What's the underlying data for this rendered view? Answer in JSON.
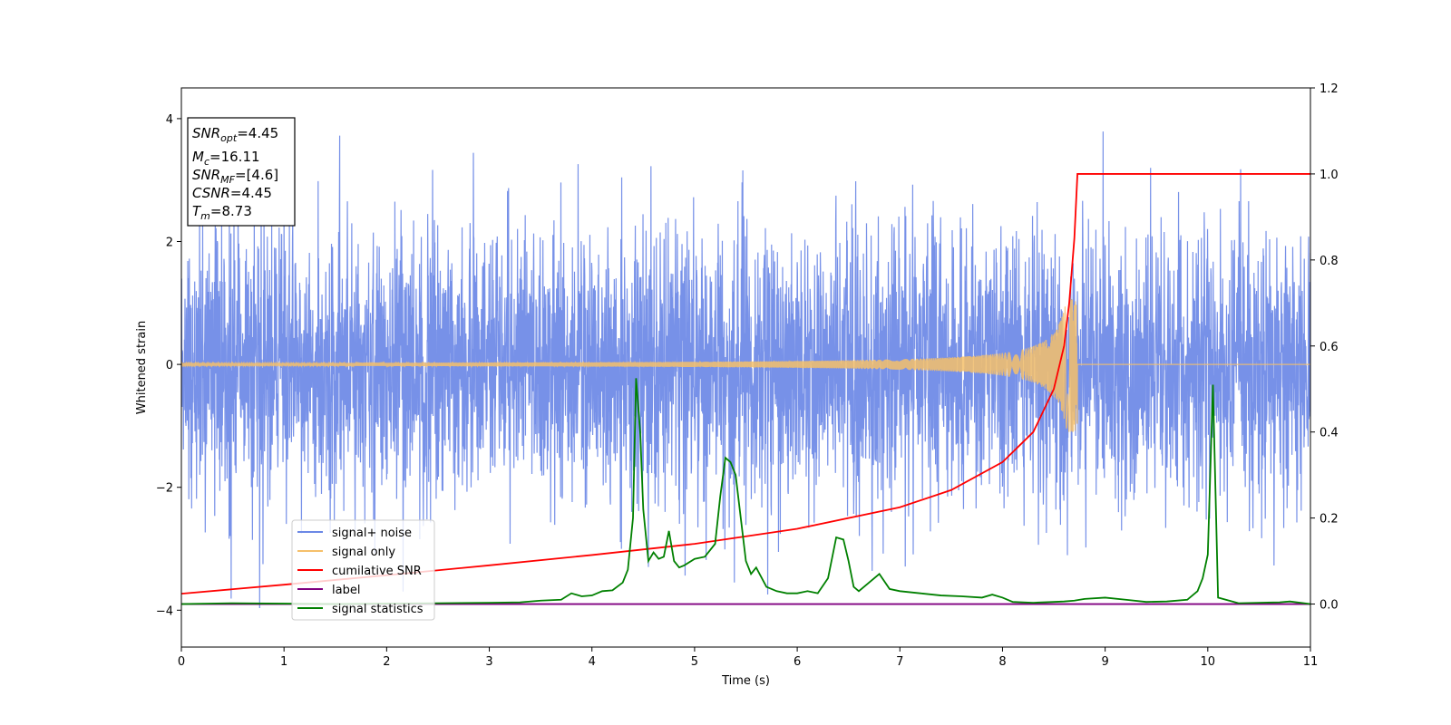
{
  "chart_data": {
    "type": "line",
    "title": "",
    "xlabel": "Time (s)",
    "ylabel": "Whitened strain",
    "xlim": [
      0,
      11
    ],
    "ylim_left": [
      -4.6,
      4.5
    ],
    "ylim_right": [
      -0.1,
      1.2
    ],
    "x_ticks": [
      0,
      1,
      2,
      3,
      4,
      5,
      6,
      7,
      8,
      9,
      10,
      11
    ],
    "y_ticks_left": [
      -4,
      -2,
      0,
      2,
      4
    ],
    "y_ticks_right": [
      0.0,
      0.2,
      0.4,
      0.6,
      0.8,
      1.0,
      1.2
    ],
    "y_ticks_right_labels": [
      "0.0",
      "0.2",
      "0.4",
      "0.6",
      "0.8",
      "1.0",
      "1.2"
    ],
    "grid": false,
    "legend_position": "lower-left",
    "series": [
      {
        "name": "signal+ noise",
        "axis": "left",
        "color": "#6b88e6",
        "kind": "noise",
        "std": 1.1,
        "range": [
          -4.1,
          4.1
        ],
        "sample_rate_hz": 400
      },
      {
        "name": "signal only",
        "axis": "left",
        "color": "#f5c06a",
        "kind": "chirp",
        "merger_time": 8.73,
        "peak_amplitude": 1.1,
        "start_amplitude": 0.02
      },
      {
        "name": "cumilative SNR",
        "axis": "right",
        "color": "#ff0000",
        "x": [
          0,
          1,
          2,
          3,
          4,
          5,
          6,
          7,
          7.5,
          8,
          8.3,
          8.5,
          8.6,
          8.65,
          8.7,
          8.73,
          11
        ],
        "y": [
          0.024,
          0.045,
          0.067,
          0.09,
          0.114,
          0.14,
          0.175,
          0.225,
          0.265,
          0.33,
          0.4,
          0.5,
          0.6,
          0.7,
          0.85,
          1.0,
          1.0
        ]
      },
      {
        "name": "label",
        "axis": "right",
        "color": "#800080",
        "x": [
          0,
          11
        ],
        "y": [
          0.0,
          0.0
        ]
      },
      {
        "name": "signal statistics",
        "axis": "right",
        "color": "#008000",
        "x": [
          0,
          0.5,
          1,
          1.5,
          2,
          2.5,
          3,
          3.3,
          3.5,
          3.7,
          3.8,
          3.9,
          4.0,
          4.1,
          4.2,
          4.3,
          4.35,
          4.4,
          4.43,
          4.47,
          4.5,
          4.55,
          4.6,
          4.65,
          4.7,
          4.75,
          4.8,
          4.85,
          4.9,
          5.0,
          5.1,
          5.2,
          5.25,
          5.3,
          5.35,
          5.4,
          5.45,
          5.5,
          5.55,
          5.6,
          5.7,
          5.8,
          5.9,
          6.0,
          6.1,
          6.2,
          6.3,
          6.38,
          6.45,
          6.5,
          6.55,
          6.6,
          6.7,
          6.8,
          6.9,
          7.0,
          7.2,
          7.4,
          7.6,
          7.8,
          7.9,
          8.0,
          8.1,
          8.3,
          8.5,
          8.6,
          8.7,
          8.8,
          9.0,
          9.2,
          9.4,
          9.6,
          9.8,
          9.9,
          9.95,
          10.0,
          10.05,
          10.1,
          10.3,
          10.5,
          10.7,
          10.8,
          11.0
        ],
        "y": [
          0.0,
          0.002,
          0.001,
          0.0,
          0.001,
          0.002,
          0.003,
          0.004,
          0.008,
          0.01,
          0.025,
          0.018,
          0.02,
          0.03,
          0.032,
          0.05,
          0.08,
          0.2,
          0.525,
          0.4,
          0.22,
          0.1,
          0.12,
          0.105,
          0.11,
          0.17,
          0.1,
          0.085,
          0.09,
          0.105,
          0.11,
          0.14,
          0.25,
          0.34,
          0.33,
          0.3,
          0.2,
          0.1,
          0.07,
          0.085,
          0.04,
          0.03,
          0.025,
          0.025,
          0.03,
          0.025,
          0.06,
          0.155,
          0.15,
          0.1,
          0.04,
          0.03,
          0.05,
          0.07,
          0.035,
          0.03,
          0.025,
          0.02,
          0.018,
          0.015,
          0.022,
          0.015,
          0.005,
          0.003,
          0.005,
          0.006,
          0.008,
          0.012,
          0.015,
          0.01,
          0.005,
          0.006,
          0.01,
          0.03,
          0.06,
          0.115,
          0.51,
          0.015,
          0.002,
          0.003,
          0.004,
          0.006,
          0.0
        ]
      }
    ],
    "annotation_box": {
      "lines": [
        {
          "var": "SNR",
          "sub": "opt",
          "value": "=4.45"
        },
        {
          "var": "M",
          "sub": "c",
          "value": "=16.11"
        },
        {
          "var": "SNR",
          "sub": "MF",
          "value": "=[4.6]"
        },
        {
          "var": "CSNR",
          "sub": "",
          "value": "=4.45"
        },
        {
          "var": "T",
          "sub": "m",
          "value": "=8.73"
        }
      ]
    }
  }
}
